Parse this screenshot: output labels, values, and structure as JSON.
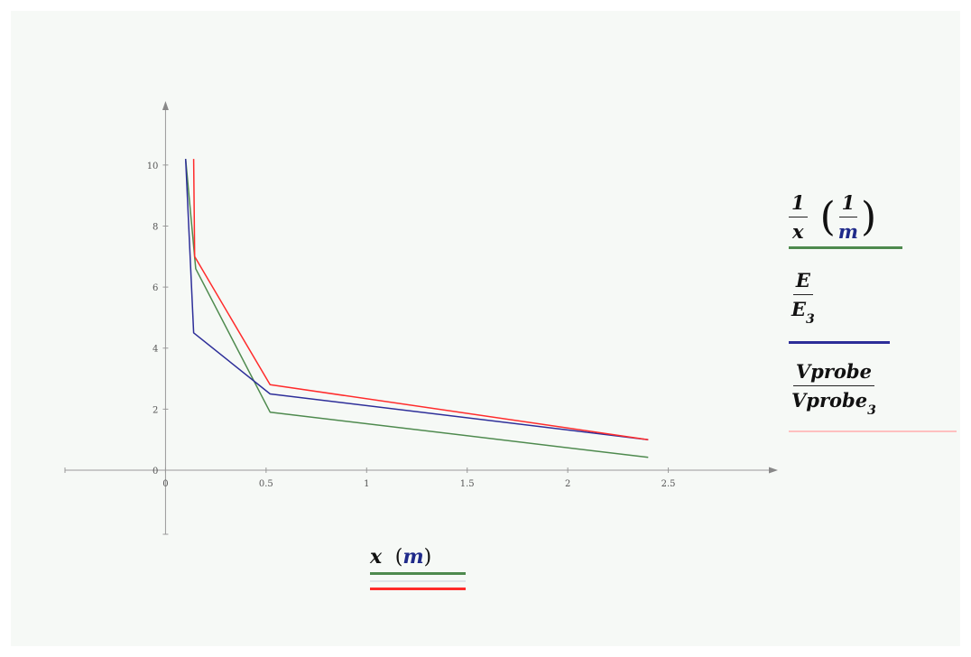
{
  "chart_data": {
    "type": "line",
    "x_ticks": [
      "0",
      "0.5",
      "1",
      "1.5",
      "2",
      "2.5"
    ],
    "y_ticks": [
      "0",
      "2",
      "4",
      "6",
      "8",
      "10"
    ],
    "xlim": [
      -0.5,
      3.0
    ],
    "ylim": [
      -2.1,
      11.8
    ],
    "series": [
      {
        "color": "#4e8a4e",
        "x": [
          0.1,
          0.15,
          0.52,
          2.4
        ],
        "y": [
          10.2,
          6.6,
          1.9,
          0.42
        ]
      },
      {
        "color": "#2d2e99",
        "x": [
          0.1,
          0.14,
          0.52,
          2.4
        ],
        "y": [
          10.2,
          4.5,
          2.5,
          1.0
        ]
      },
      {
        "color": "#ff2b2b",
        "x": [
          0.14,
          0.145,
          0.52,
          2.4
        ],
        "y": [
          10.2,
          7.0,
          2.8,
          1.0
        ]
      }
    ],
    "legend": [
      {
        "color": "#4e8a4e",
        "num": "1",
        "den": "x",
        "unit_num": "1",
        "unit_den": "m"
      },
      {
        "color": "#2d2e99",
        "num": "E",
        "den": "E",
        "den_sub": "3"
      },
      {
        "color": "#ffc0c0",
        "num": "Vprobe",
        "den": "Vprobe",
        "den_sub": "3"
      }
    ],
    "xlabel": {
      "var": "x",
      "unit": "m",
      "line_colors": [
        "#4e8a4e",
        "#dfe4ea",
        "#ff2b2b"
      ]
    }
  }
}
